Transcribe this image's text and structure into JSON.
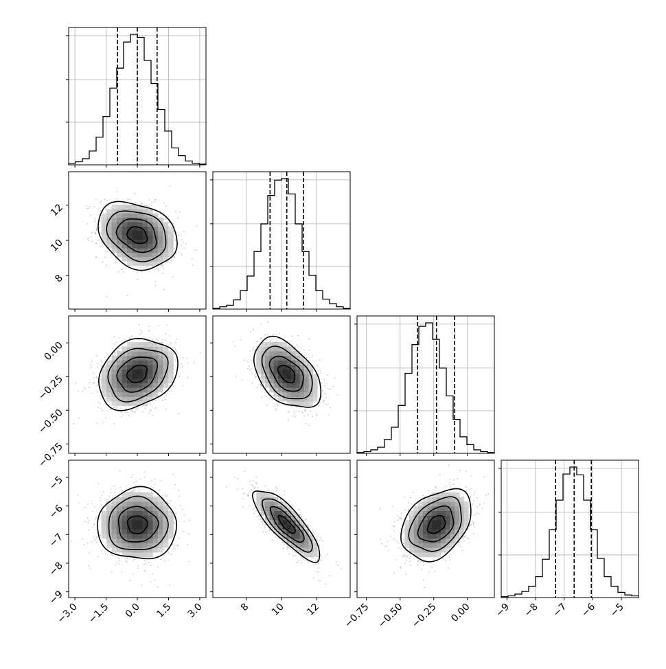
{
  "figure": {
    "background": "#ffffff",
    "hist_color": "#000000",
    "grid_color": "#b0b0b0",
    "scatter_color": "#9a9a9a"
  },
  "chart_data": {
    "type": "corner",
    "variables": [
      {
        "range": [
          -3.3,
          3.3
        ],
        "ticks": [
          -3.0,
          -1.5,
          0.0,
          1.5,
          3.0
        ],
        "tick_labels": [
          "−3.0",
          "−1.5",
          "0.0",
          "1.5",
          "3.0"
        ],
        "mean": 0.0,
        "sd": 0.95,
        "quantiles": [
          -0.95,
          0.0,
          0.95
        ]
      },
      {
        "range": [
          6.1,
          13.9
        ],
        "ticks": [
          8,
          10,
          12
        ],
        "tick_labels": [
          "8",
          "10",
          "12"
        ],
        "mean": 10.3,
        "sd": 0.95,
        "quantiles": [
          9.35,
          10.3,
          11.25
        ]
      },
      {
        "range": [
          -0.82,
          0.2
        ],
        "ticks": [
          -0.75,
          -0.5,
          -0.25,
          0.0
        ],
        "tick_labels": [
          "−0.75",
          "−0.50",
          "−0.25",
          "0.00"
        ],
        "mean": -0.23,
        "sd": 0.13,
        "quantiles": [
          -0.37,
          -0.23,
          -0.095
        ]
      },
      {
        "range": [
          -9.2,
          -4.4
        ],
        "ticks": [
          -9,
          -8,
          -7,
          -6,
          -5
        ],
        "tick_labels": [
          "−9",
          "−8",
          "−7",
          "−6",
          "−5"
        ],
        "mean": -6.65,
        "sd": 0.62,
        "quantiles": [
          -7.3,
          -6.65,
          -6.05
        ]
      }
    ],
    "histograms": [
      {
        "variable": 0,
        "counts": [
          2,
          4,
          8,
          18,
          36,
          63,
          100,
          126,
          160,
          170,
          166,
          136,
          106,
          72,
          44,
          22,
          12,
          5,
          2,
          1
        ]
      },
      {
        "variable": 1,
        "counts": [
          1,
          3,
          5,
          12,
          24,
          43,
          75,
          111,
          148,
          168,
          170,
          150,
          111,
          75,
          44,
          24,
          13,
          7,
          3,
          1
        ]
      },
      {
        "variable": 2,
        "counts": [
          1,
          2,
          4,
          7,
          16,
          30,
          55,
          92,
          125,
          146,
          150,
          131,
          98,
          66,
          39,
          19,
          10,
          4,
          2,
          1
        ]
      },
      {
        "variable": 3,
        "counts": [
          1,
          2,
          4,
          7,
          13,
          24,
          44,
          78,
          112,
          142,
          150,
          141,
          112,
          78,
          45,
          24,
          13,
          6,
          3,
          2
        ]
      }
    ],
    "pairs": [
      {
        "x": 0,
        "y": 1,
        "corr": -0.25
      },
      {
        "x": 0,
        "y": 2,
        "corr": 0.25
      },
      {
        "x": 1,
        "y": 2,
        "corr": -0.45
      },
      {
        "x": 0,
        "y": 3,
        "corr": 0.0
      },
      {
        "x": 1,
        "y": 3,
        "corr": -0.82
      },
      {
        "x": 2,
        "y": 3,
        "corr": 0.35
      }
    ],
    "contour_levels_sigma": [
      0.5,
      1.0,
      1.5,
      2.0
    ],
    "grid": true
  }
}
